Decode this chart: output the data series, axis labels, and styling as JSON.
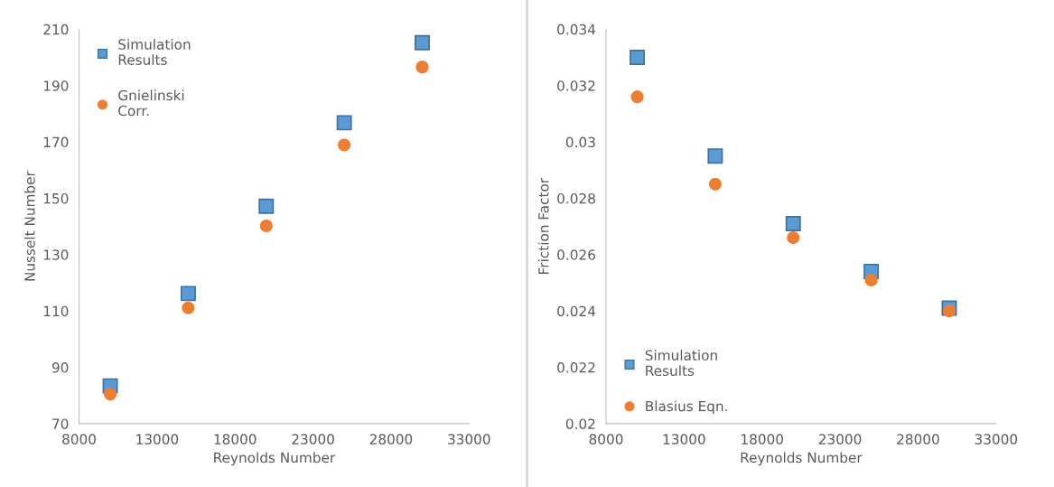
{
  "chart_data": [
    {
      "type": "scatter",
      "xlabel": "Reynolds Number",
      "ylabel": "Nusselt Number",
      "x": [
        10000,
        15000,
        20000,
        25000,
        30000
      ],
      "series": [
        {
          "name": "Simulation Results",
          "color": "#5b9bd5",
          "marker": "square",
          "values": [
            83.4,
            116.2,
            147.2,
            176.8,
            205.2
          ]
        },
        {
          "name": "Gnielinski Corr.",
          "color": "#ed7d31",
          "marker": "circle",
          "values": [
            80.5,
            111.1,
            140.2,
            168.9,
            196.6
          ]
        }
      ],
      "xlim": [
        8000,
        33000
      ],
      "xticks": [
        8000,
        13000,
        18000,
        23000,
        28000,
        33000
      ],
      "ylim": [
        70,
        210
      ],
      "yticks": [
        70,
        90,
        110,
        130,
        150,
        170,
        190,
        210
      ],
      "grid": false,
      "legend": "top left"
    },
    {
      "type": "scatter",
      "xlabel": "Reynolds Number",
      "ylabel": "Friction Factor",
      "x": [
        10000,
        15000,
        20000,
        25000,
        30000
      ],
      "series": [
        {
          "name": "Simulation Results",
          "color": "#5b9bd5",
          "marker": "square",
          "values": [
            0.033,
            0.0295,
            0.0271,
            0.0254,
            0.0241
          ]
        },
        {
          "name": "Blasius Eqn.",
          "color": "#ed7d31",
          "marker": "circle",
          "values": [
            0.0316,
            0.0285,
            0.0266,
            0.0251,
            0.024
          ]
        }
      ],
      "xlim": [
        8000,
        33000
      ],
      "xticks": [
        8000,
        13000,
        18000,
        23000,
        28000,
        33000
      ],
      "ylim": [
        0.02,
        0.034
      ],
      "yticks": [
        {
          "value": 0.02,
          "label": "0.02"
        },
        {
          "value": 0.022,
          "label": "0.022"
        },
        {
          "value": 0.024,
          "label": "0.024"
        },
        {
          "value": 0.026,
          "label": "0.026"
        },
        {
          "value": 0.028,
          "label": "0.028"
        },
        {
          "value": 0.03,
          "label": "0.03"
        },
        {
          "value": 0.032,
          "label": "0.032"
        },
        {
          "value": 0.034,
          "label": "0.034"
        }
      ],
      "grid": false,
      "legend": "bottom left"
    }
  ]
}
